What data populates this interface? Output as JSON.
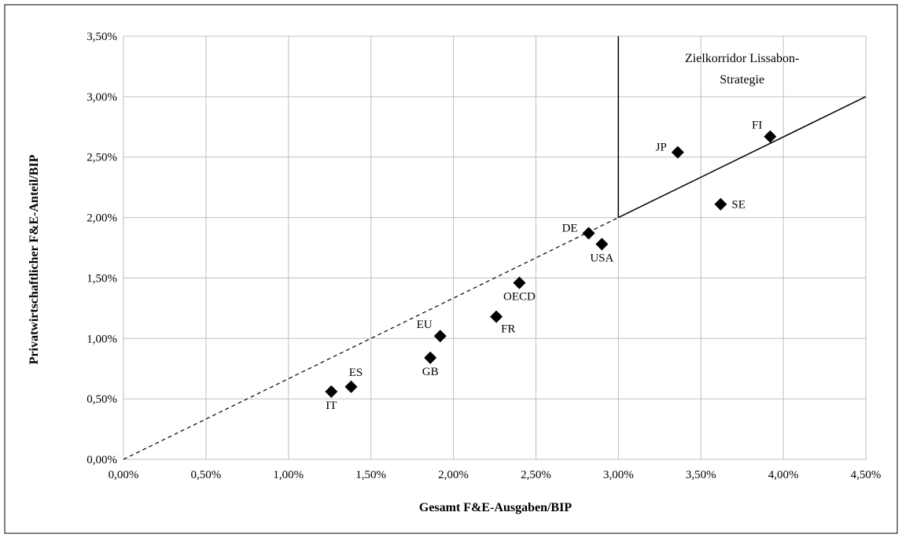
{
  "chart_data": {
    "type": "scatter",
    "title": "",
    "xlabel": "Gesamt  F&E-Ausgaben/BIP",
    "ylabel": "Privatwirtschaftlicher  F&E-Anteil/BIP",
    "xlim": [
      0,
      4.5
    ],
    "ylim": [
      0,
      3.5
    ],
    "grid": true,
    "x_ticks": [
      0,
      0.5,
      1.0,
      1.5,
      2.0,
      2.5,
      3.0,
      3.5,
      4.0,
      4.5
    ],
    "y_ticks": [
      0,
      0.5,
      1.0,
      1.5,
      2.0,
      2.5,
      3.0,
      3.5
    ],
    "x_tick_labels": [
      "0,00%",
      "0,50%",
      "1,00%",
      "1,50%",
      "2,00%",
      "2,50%",
      "3,00%",
      "3,50%",
      "4,00%",
      "4,50%"
    ],
    "y_tick_labels": [
      "0,00%",
      "0,50%",
      "1,00%",
      "1,50%",
      "2,00%",
      "2,50%",
      "3,00%",
      "3,50%"
    ],
    "marker": "diamond",
    "marker_color": "#000000",
    "points": [
      {
        "label": "IT",
        "x": 1.26,
        "y": 0.56,
        "label_pos": "below"
      },
      {
        "label": "ES",
        "x": 1.38,
        "y": 0.6,
        "label_pos": "above"
      },
      {
        "label": "GB",
        "x": 1.86,
        "y": 0.84,
        "label_pos": "below"
      },
      {
        "label": "EU",
        "x": 1.92,
        "y": 1.02,
        "label_pos": "upper-left"
      },
      {
        "label": "FR",
        "x": 2.26,
        "y": 1.18,
        "label_pos": "lower-right"
      },
      {
        "label": "OECD",
        "x": 2.4,
        "y": 1.46,
        "label_pos": "below"
      },
      {
        "label": "DE",
        "x": 2.82,
        "y": 1.87,
        "label_pos": "left"
      },
      {
        "label": "USA",
        "x": 2.9,
        "y": 1.78,
        "label_pos": "below"
      },
      {
        "label": "JP",
        "x": 3.36,
        "y": 2.54,
        "label_pos": "left"
      },
      {
        "label": "SE",
        "x": 3.62,
        "y": 2.11,
        "label_pos": "right"
      },
      {
        "label": "FI",
        "x": 3.92,
        "y": 2.67,
        "label_pos": "upper-left"
      }
    ],
    "reference_line": {
      "dashed_segment": [
        [
          0,
          0
        ],
        [
          3.0,
          2.0
        ]
      ],
      "solid_segment": [
        [
          3.0,
          2.0
        ],
        [
          4.5,
          3.0
        ]
      ]
    },
    "target_corridor": {
      "x_from": 3.0,
      "y_from": 2.0,
      "annotation_lines": [
        "Zielkorridor  Lissabon-",
        "Strategie"
      ]
    }
  }
}
